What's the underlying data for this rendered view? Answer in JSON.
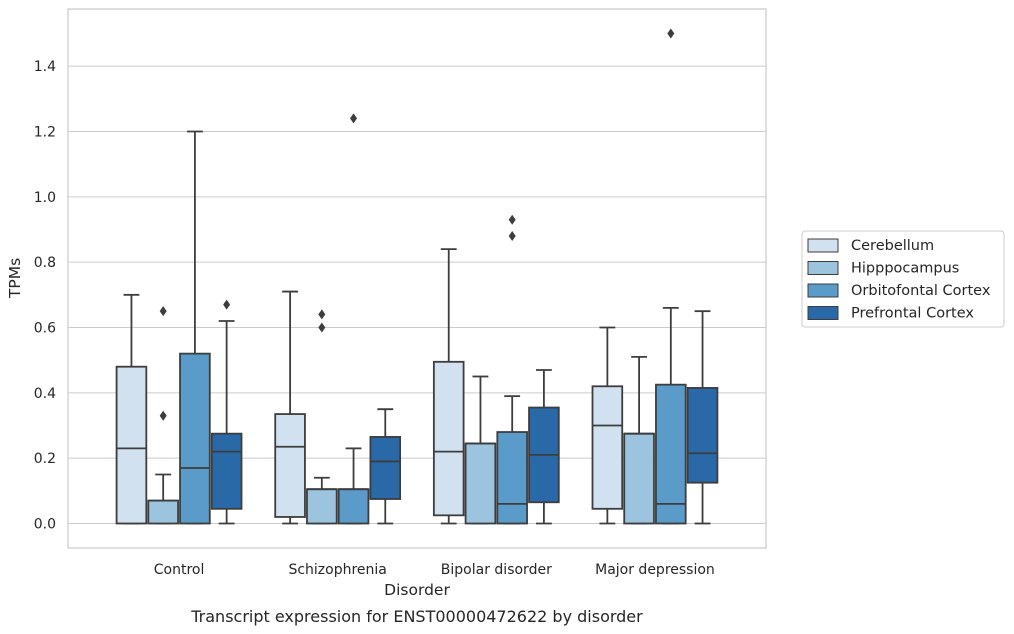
{
  "chart_data": {
    "type": "box",
    "title": "",
    "caption": "Transcript expression for ENST00000472622 by disorder",
    "xlabel": "Disorder",
    "ylabel": "TPMs",
    "ylim": [
      -0.075,
      1.575
    ],
    "yticks": [
      0.0,
      0.2,
      0.4,
      0.6,
      0.8,
      1.0,
      1.2,
      1.4
    ],
    "ytick_labels": [
      "0.0",
      "0.2",
      "0.4",
      "0.6",
      "0.8",
      "1.0",
      "1.2",
      "1.4"
    ],
    "grid": "horizontal",
    "legend_placement": "right-center",
    "categories": [
      "Control",
      "Schizophrenia",
      "Bipolar disorder",
      "Major depression"
    ],
    "series": [
      {
        "name": "Cerebellum",
        "color": "#d1e1f0",
        "boxes": [
          {
            "whislo": 0.0,
            "q1": 0.0,
            "med": 0.23,
            "q3": 0.48,
            "whishi": 0.7,
            "fliers": []
          },
          {
            "whislo": 0.0,
            "q1": 0.02,
            "med": 0.235,
            "q3": 0.335,
            "whishi": 0.71,
            "fliers": []
          },
          {
            "whislo": 0.0,
            "q1": 0.025,
            "med": 0.22,
            "q3": 0.495,
            "whishi": 0.84,
            "fliers": []
          },
          {
            "whislo": 0.0,
            "q1": 0.045,
            "med": 0.3,
            "q3": 0.42,
            "whishi": 0.6,
            "fliers": []
          }
        ]
      },
      {
        "name": "Hipppocampus",
        "color": "#9dc4de",
        "boxes": [
          {
            "whislo": 0.0,
            "q1": 0.0,
            "med": 0.07,
            "q3": 0.07,
            "whishi": 0.15,
            "fliers": [
              0.33,
              0.65
            ]
          },
          {
            "whislo": 0.0,
            "q1": 0.0,
            "med": 0.105,
            "q3": 0.105,
            "whishi": 0.14,
            "fliers": [
              0.6,
              0.64
            ]
          },
          {
            "whislo": 0.0,
            "q1": 0.0,
            "med": 0.245,
            "q3": 0.245,
            "whishi": 0.45,
            "fliers": []
          },
          {
            "whislo": 0.0,
            "q1": 0.0,
            "med": 0.275,
            "q3": 0.275,
            "whishi": 0.51,
            "fliers": []
          }
        ]
      },
      {
        "name": "Orbitofontal Cortex",
        "color": "#5a9bc9",
        "boxes": [
          {
            "whislo": 0.0,
            "q1": 0.0,
            "med": 0.17,
            "q3": 0.52,
            "whishi": 1.2,
            "fliers": []
          },
          {
            "whislo": 0.0,
            "q1": 0.0,
            "med": 0.105,
            "q3": 0.105,
            "whishi": 0.23,
            "fliers": [
              1.24
            ]
          },
          {
            "whislo": 0.0,
            "q1": 0.0,
            "med": 0.06,
            "q3": 0.28,
            "whishi": 0.39,
            "fliers": [
              0.88,
              0.93
            ]
          },
          {
            "whislo": 0.0,
            "q1": 0.0,
            "med": 0.06,
            "q3": 0.425,
            "whishi": 0.66,
            "fliers": [
              1.5
            ]
          }
        ]
      },
      {
        "name": "Prefrontal Cortex",
        "color": "#2a69a8",
        "boxes": [
          {
            "whislo": 0.0,
            "q1": 0.045,
            "med": 0.22,
            "q3": 0.275,
            "whishi": 0.62,
            "fliers": [
              0.67
            ]
          },
          {
            "whislo": 0.0,
            "q1": 0.075,
            "med": 0.19,
            "q3": 0.265,
            "whishi": 0.35,
            "fliers": []
          },
          {
            "whislo": 0.0,
            "q1": 0.065,
            "med": 0.21,
            "q3": 0.355,
            "whishi": 0.47,
            "fliers": []
          },
          {
            "whislo": 0.0,
            "q1": 0.125,
            "med": 0.215,
            "q3": 0.415,
            "whishi": 0.65,
            "fliers": []
          }
        ]
      }
    ]
  }
}
